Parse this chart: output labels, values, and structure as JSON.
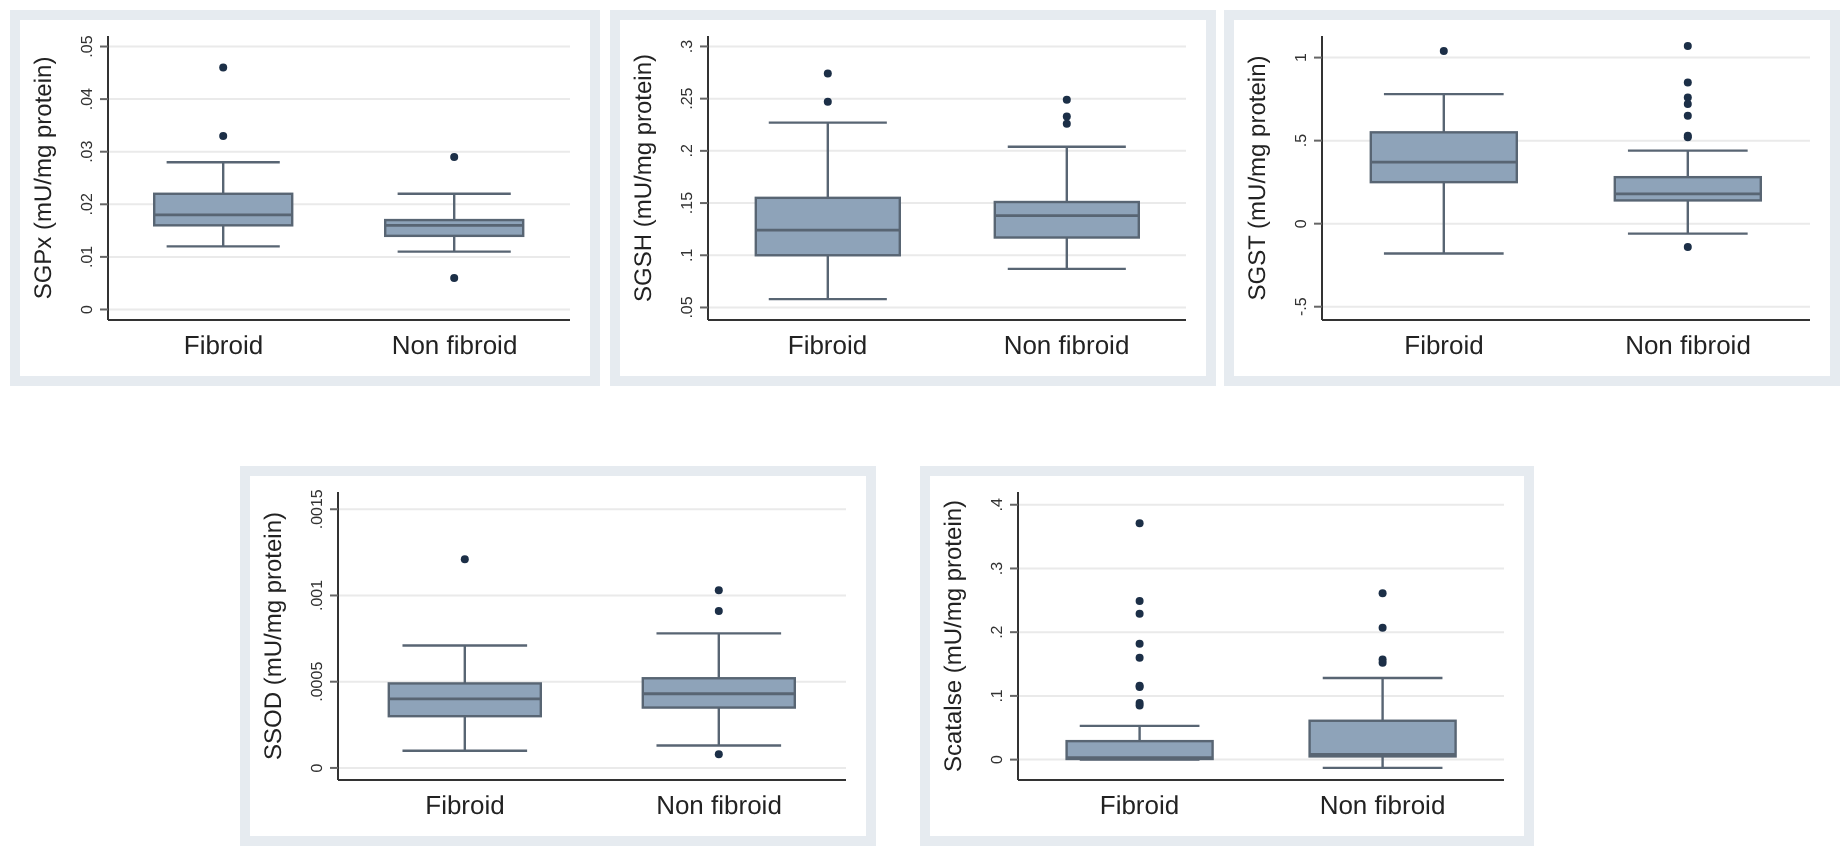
{
  "chart_data": [
    {
      "type": "box",
      "ylabel": "SGPx (mU/mg protein)",
      "categories": [
        "Fibroid",
        "Non fibroid"
      ],
      "color": "#8ea3b9",
      "grid": "y",
      "ylim": [
        -0.002,
        0.052
      ],
      "yticks": [
        {
          "value": 0,
          "label": "0"
        },
        {
          "value": 0.01,
          "label": ".01"
        },
        {
          "value": 0.02,
          "label": ".02"
        },
        {
          "value": 0.03,
          "label": ".03"
        },
        {
          "value": 0.04,
          "label": ".04"
        },
        {
          "value": 0.05,
          "label": ".05"
        }
      ],
      "boxes": [
        {
          "low": 0.012,
          "q1": 0.016,
          "median": 0.018,
          "q3": 0.022,
          "high": 0.028,
          "outliers": [
            0.046,
            0.033
          ]
        },
        {
          "low": 0.011,
          "q1": 0.014,
          "median": 0.016,
          "q3": 0.017,
          "high": 0.022,
          "outliers": [
            0.029,
            0.006
          ]
        }
      ]
    },
    {
      "type": "box",
      "ylabel": "SGSH (mU/mg protein)",
      "categories": [
        "Fibroid",
        "Non fibroid"
      ],
      "color": "#8ea3b9",
      "grid": "y",
      "ylim": [
        0.038,
        0.31
      ],
      "yticks": [
        {
          "value": 0.05,
          "label": ".05"
        },
        {
          "value": 0.1,
          "label": ".1"
        },
        {
          "value": 0.15,
          "label": ".15"
        },
        {
          "value": 0.2,
          "label": ".2"
        },
        {
          "value": 0.25,
          "label": ".25"
        },
        {
          "value": 0.3,
          "label": ".3"
        }
      ],
      "boxes": [
        {
          "low": 0.058,
          "q1": 0.1,
          "median": 0.124,
          "q3": 0.155,
          "high": 0.227,
          "outliers": [
            0.274,
            0.247
          ]
        },
        {
          "low": 0.087,
          "q1": 0.117,
          "median": 0.138,
          "q3": 0.151,
          "high": 0.204,
          "outliers": [
            0.249,
            0.233,
            0.226
          ]
        }
      ]
    },
    {
      "type": "box",
      "ylabel": "SGST (mU/mg protein)",
      "categories": [
        "Fibroid",
        "Non fibroid"
      ],
      "color": "#8ea3b9",
      "grid": "y",
      "ylim": [
        -0.58,
        1.13
      ],
      "yticks": [
        {
          "value": -0.5,
          "label": "-.5"
        },
        {
          "value": 0,
          "label": "0"
        },
        {
          "value": 0.5,
          "label": ".5"
        },
        {
          "value": 1,
          "label": "1"
        }
      ],
      "boxes": [
        {
          "low": -0.18,
          "q1": 0.25,
          "median": 0.37,
          "q3": 0.55,
          "high": 0.78,
          "outliers": [
            1.04
          ]
        },
        {
          "low": -0.06,
          "q1": 0.14,
          "median": 0.18,
          "q3": 0.28,
          "high": 0.44,
          "outliers": [
            1.07,
            0.85,
            0.76,
            0.72,
            0.65,
            0.53,
            0.52,
            -0.14
          ]
        }
      ]
    },
    {
      "type": "box",
      "ylabel": "SSOD (mU/mg protein)",
      "categories": [
        "Fibroid",
        "Non fibroid"
      ],
      "color": "#8ea3b9",
      "grid": "y",
      "ylim": [
        -7e-05,
        0.0016
      ],
      "yticks": [
        {
          "value": 0,
          "label": "0"
        },
        {
          "value": 0.0005,
          "label": ".0005"
        },
        {
          "value": 0.001,
          "label": ".001"
        },
        {
          "value": 0.0015,
          "label": ".0015"
        }
      ],
      "boxes": [
        {
          "low": 0.0001,
          "q1": 0.0003,
          "median": 0.0004,
          "q3": 0.00049,
          "high": 0.00071,
          "outliers": [
            0.00121
          ]
        },
        {
          "low": 0.00013,
          "q1": 0.00035,
          "median": 0.00043,
          "q3": 0.00052,
          "high": 0.00078,
          "outliers": [
            0.00103,
            0.00091,
            8e-05
          ]
        }
      ]
    },
    {
      "type": "box",
      "ylabel": "Scatalse (mU/mg protein)",
      "categories": [
        "Fibroid",
        "Non fibroid"
      ],
      "color": "#8ea3b9",
      "grid": "y",
      "ylim": [
        -0.032,
        0.42
      ],
      "yticks": [
        {
          "value": 0,
          "label": "0"
        },
        {
          "value": 0.1,
          "label": ".1"
        },
        {
          "value": 0.2,
          "label": ".2"
        },
        {
          "value": 0.3,
          "label": ".3"
        },
        {
          "value": 0.4,
          "label": ".4"
        }
      ],
      "boxes": [
        {
          "low": 0,
          "q1": 0.001,
          "median": 0.003,
          "q3": 0.029,
          "high": 0.053,
          "outliers": [
            0.371,
            0.249,
            0.229,
            0.182,
            0.16,
            0.116,
            0.114,
            0.089,
            0.085
          ]
        },
        {
          "low": -0.013,
          "q1": 0.005,
          "median": 0.008,
          "q3": 0.061,
          "high": 0.128,
          "outliers": [
            0.261,
            0.207,
            0.157,
            0.152
          ]
        }
      ]
    }
  ]
}
